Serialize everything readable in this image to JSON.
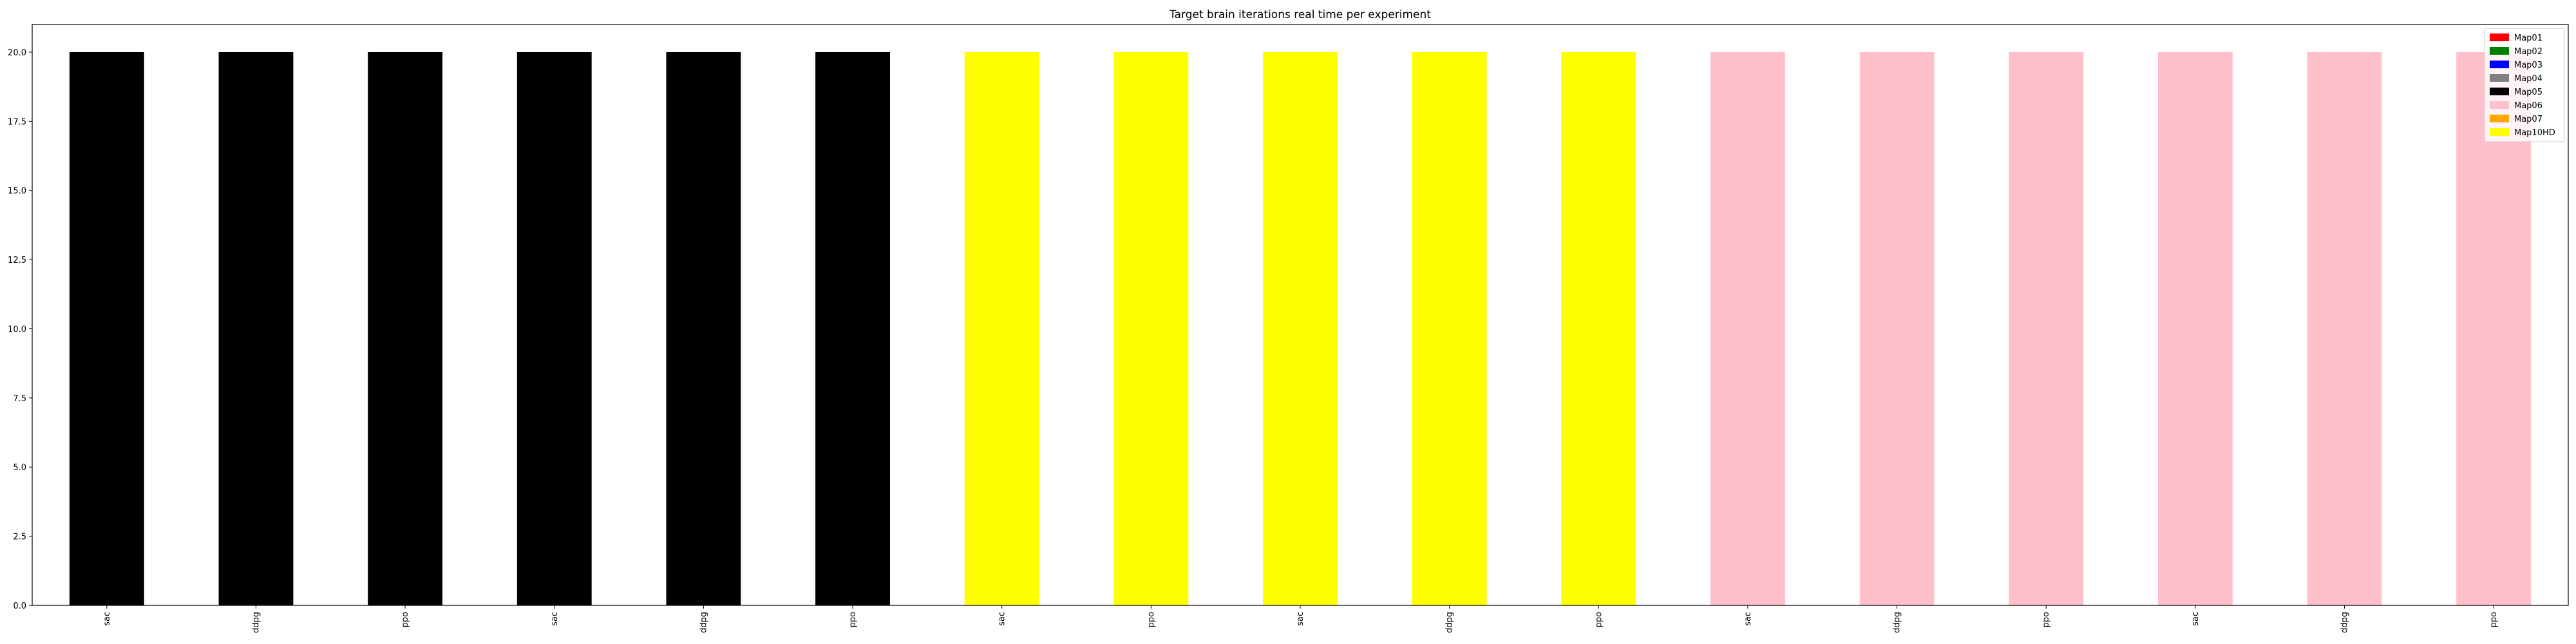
{
  "chart_data": {
    "type": "bar",
    "title": "Target brain iterations real time per experiment",
    "xlabel": "",
    "ylabel": "",
    "ylim": [
      0,
      21
    ],
    "yticks": [
      "0.0",
      "2.5",
      "5.0",
      "7.5",
      "10.0",
      "12.5",
      "15.0",
      "17.5",
      "20.0"
    ],
    "categories": [
      "sac",
      "ddpg",
      "ppo",
      "sac",
      "ddpg",
      "ppo",
      "sac",
      "ppo",
      "sac",
      "ddpg",
      "ppo",
      "sac",
      "ddpg",
      "ppo",
      "sac",
      "ddpg",
      "ppo"
    ],
    "values": [
      20,
      20,
      20,
      20,
      20,
      20,
      20,
      20,
      20,
      20,
      20,
      20,
      20,
      20,
      20,
      20,
      20
    ],
    "bar_maps": [
      "Map05",
      "Map05",
      "Map05",
      "Map05",
      "Map05",
      "Map05",
      "Map10HD",
      "Map10HD",
      "Map10HD",
      "Map10HD",
      "Map10HD",
      "Map06",
      "Map06",
      "Map06",
      "Map06",
      "Map06",
      "Map06"
    ],
    "legend": [
      {
        "label": "Map01",
        "color": "#ff0000"
      },
      {
        "label": "Map02",
        "color": "#008000"
      },
      {
        "label": "Map03",
        "color": "#0000ff"
      },
      {
        "label": "Map04",
        "color": "#808080"
      },
      {
        "label": "Map05",
        "color": "#000000"
      },
      {
        "label": "Map06",
        "color": "#ffc0cb"
      },
      {
        "label": "Map07",
        "color": "#ffa500"
      },
      {
        "label": "Map10HD",
        "color": "#ffff00"
      }
    ],
    "legend_position": "top-right",
    "grid": false
  }
}
